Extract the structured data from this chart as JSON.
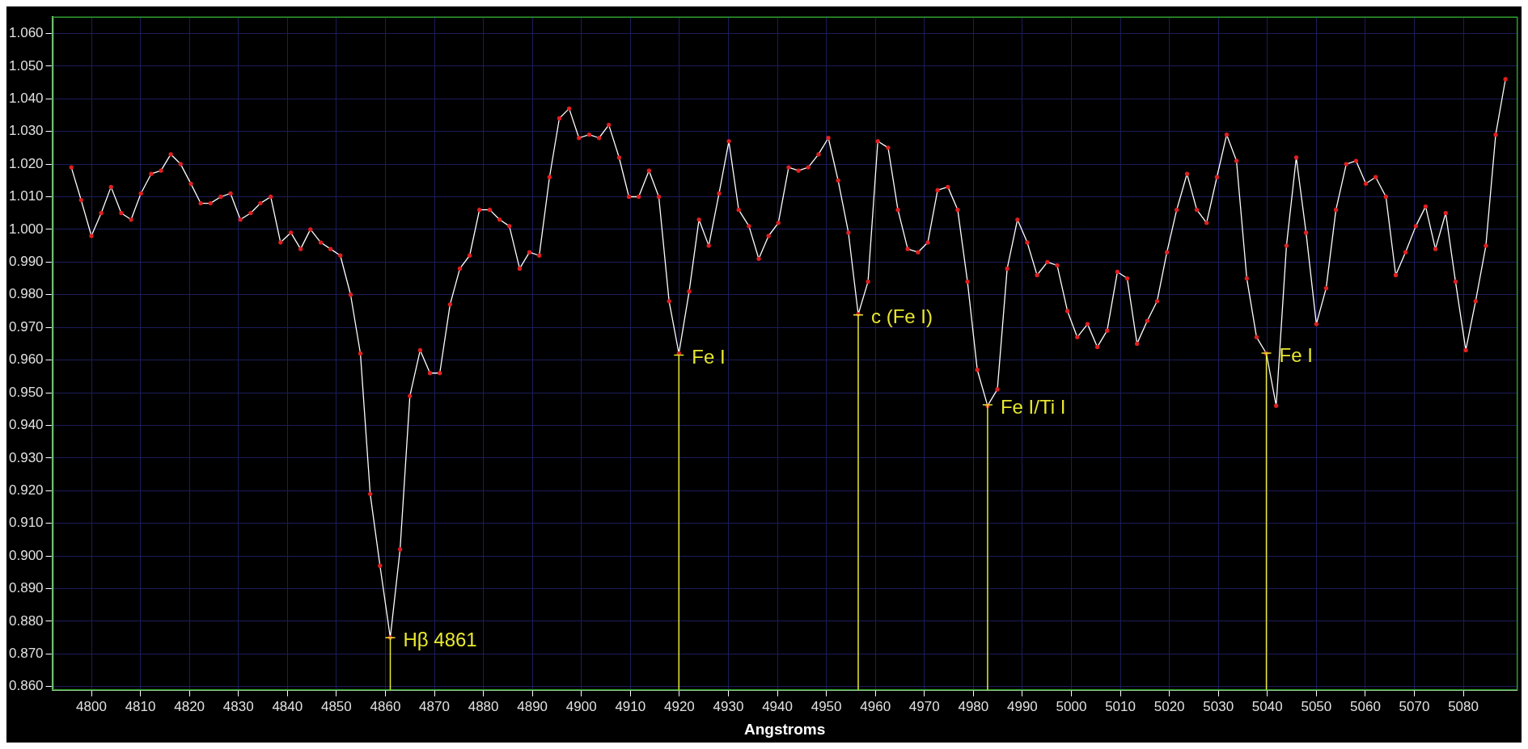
{
  "chart_data": {
    "type": "line",
    "xlabel": "Angstroms",
    "x": [
      4795.9,
      4797.9,
      4800.0,
      4802.0,
      4804.0,
      4806.1,
      4808.1,
      4810.1,
      4812.2,
      4814.2,
      4816.2,
      4818.2,
      4820.3,
      4822.3,
      4824.3,
      4826.4,
      4828.4,
      4830.4,
      4832.5,
      4834.5,
      4836.6,
      4838.6,
      4840.7,
      4842.7,
      4844.7,
      4846.8,
      4848.8,
      4850.8,
      4852.9,
      4854.9,
      4856.9,
      4858.9,
      4861.0,
      4863.0,
      4865.0,
      4867.1,
      4869.1,
      4871.1,
      4873.2,
      4875.2,
      4877.2,
      4879.2,
      4881.3,
      4883.3,
      4885.3,
      4887.4,
      4889.4,
      4891.4,
      4893.5,
      4895.5,
      4897.5,
      4899.5,
      4901.6,
      4903.6,
      4905.6,
      4907.7,
      4909.7,
      4911.7,
      4913.8,
      4915.8,
      4917.9,
      4919.9,
      4922.0,
      4924.0,
      4926.0,
      4928.1,
      4930.1,
      4932.1,
      4934.2,
      4936.2,
      4938.2,
      4940.2,
      4942.3,
      4944.3,
      4946.3,
      4948.4,
      4950.4,
      4952.4,
      4954.5,
      4956.5,
      4958.5,
      4960.5,
      4962.6,
      4964.6,
      4966.6,
      4968.7,
      4970.7,
      4972.7,
      4974.8,
      4976.8,
      4978.8,
      4980.8,
      4982.9,
      4984.9,
      4986.9,
      4989.0,
      4991.0,
      4993.0,
      4995.1,
      4997.1,
      4999.2,
      5001.2,
      5003.3,
      5005.3,
      5007.3,
      5009.4,
      5011.4,
      5013.4,
      5015.5,
      5017.5,
      5019.5,
      5021.5,
      5023.6,
      5025.6,
      5027.6,
      5029.7,
      5031.7,
      5033.7,
      5035.8,
      5037.8,
      5039.8,
      5041.8,
      5043.9,
      5045.9,
      5047.9,
      5050.0,
      5052.0,
      5054.0,
      5056.1,
      5058.1,
      5060.1,
      5062.1,
      5064.2,
      5066.2,
      5068.2,
      5070.3,
      5072.3,
      5074.3,
      5076.4,
      5078.4,
      5080.5,
      5082.5,
      5084.6,
      5086.6,
      5088.6
    ],
    "series": [
      {
        "color": "#ffffff",
        "values": [
          1.019,
          1.009,
          0.998,
          1.005,
          1.013,
          1.005,
          1.003,
          1.011,
          1.017,
          1.018,
          1.023,
          1.02,
          1.014,
          1.008,
          1.008,
          1.01,
          1.011,
          1.003,
          1.005,
          1.008,
          1.01,
          0.996,
          0.999,
          0.994,
          1.0,
          0.996,
          0.994,
          0.992,
          0.98,
          0.962,
          0.919,
          0.897,
          0.875,
          0.902,
          0.949,
          0.963,
          0.956,
          0.956,
          0.977,
          0.988,
          0.992,
          1.006,
          1.006,
          1.003,
          1.001,
          0.988,
          0.993,
          0.992,
          1.016,
          1.034,
          1.037,
          1.028,
          1.029,
          1.028,
          1.032,
          1.022,
          1.01,
          1.01,
          1.018,
          1.01,
          0.978,
          0.962,
          0.981,
          1.003,
          0.995,
          1.011,
          1.027,
          1.006,
          1.001,
          0.991,
          0.998,
          1.002,
          1.019,
          1.018,
          1.019,
          1.023,
          1.028,
          1.015,
          0.999,
          0.974,
          0.984,
          1.027,
          1.025,
          1.006,
          0.994,
          0.993,
          0.996,
          1.012,
          1.013,
          1.006,
          0.984,
          0.957,
          0.946,
          0.951,
          0.988,
          1.003,
          0.996,
          0.986,
          0.99,
          0.989,
          0.975,
          0.967,
          0.971,
          0.964,
          0.969,
          0.987,
          0.985,
          0.965,
          0.972,
          0.978,
          0.993,
          1.006,
          1.017,
          1.006,
          1.002,
          1.016,
          1.029,
          1.021,
          0.985,
          0.967,
          0.962,
          0.946,
          0.995,
          1.022,
          0.999,
          0.971,
          0.982,
          1.006,
          1.02,
          1.021,
          1.014,
          1.016,
          1.01,
          0.986,
          0.993,
          1.001,
          1.007,
          0.994,
          1.005,
          0.984,
          0.963,
          0.978,
          0.995,
          1.029,
          1.046
        ]
      }
    ],
    "xlim": [
      4792,
      5091
    ],
    "ylim": [
      0.859,
      1.065
    ],
    "xticks": [
      4800,
      4810,
      4820,
      4830,
      4840,
      4850,
      4860,
      4870,
      4880,
      4890,
      4900,
      4910,
      4920,
      4930,
      4940,
      4950,
      4960,
      4970,
      4980,
      4990,
      5000,
      5010,
      5020,
      5030,
      5040,
      5050,
      5060,
      5070,
      5080
    ],
    "yticks": [
      {
        "value": 0.86,
        "label": "0.860"
      },
      {
        "value": 0.87,
        "label": "0.870"
      },
      {
        "value": 0.88,
        "label": "0.880"
      },
      {
        "value": 0.89,
        "label": "0.890"
      },
      {
        "value": 0.9,
        "label": "0.900"
      },
      {
        "value": 0.91,
        "label": "0.910"
      },
      {
        "value": 0.92,
        "label": "0.920"
      },
      {
        "value": 0.93,
        "label": "0.930"
      },
      {
        "value": 0.94,
        "label": "0.940"
      },
      {
        "value": 0.95,
        "label": "0.950"
      },
      {
        "value": 0.96,
        "label": "0.960"
      },
      {
        "value": 0.97,
        "label": "0.970"
      },
      {
        "value": 0.98,
        "label": "0.980"
      },
      {
        "value": 0.99,
        "label": "0.990"
      },
      {
        "value": 1.0,
        "label": "1.000"
      },
      {
        "value": 1.01,
        "label": "1.010"
      },
      {
        "value": 1.02,
        "label": "1.020"
      },
      {
        "value": 1.03,
        "label": "1.030"
      },
      {
        "value": 1.04,
        "label": "1.040"
      },
      {
        "value": 1.05,
        "label": "1.050"
      },
      {
        "value": 1.06,
        "label": "1.060"
      }
    ],
    "annotations": [
      {
        "text": "Hβ 4861",
        "x": 4861.0,
        "y": 0.875
      },
      {
        "text": "Fe I",
        "x": 4919.9,
        "y": 0.9615
      },
      {
        "text": "c (Fe I)",
        "x": 4956.5,
        "y": 0.9738
      },
      {
        "text": "Fe I/Ti I",
        "x": 4982.9,
        "y": 0.9463
      },
      {
        "text": "Fe I",
        "x": 5039.8,
        "y": 0.9621
      }
    ],
    "grid": true,
    "legend": false,
    "marker": "circle",
    "line_style": "solid"
  }
}
